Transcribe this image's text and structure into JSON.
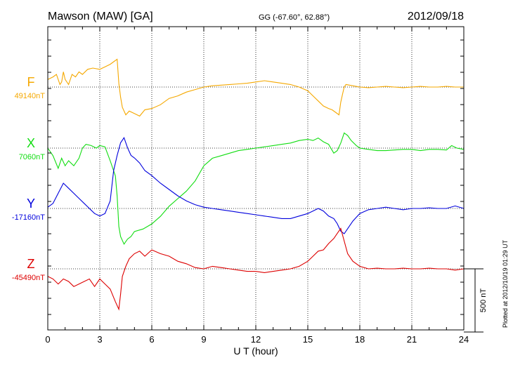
{
  "header": {
    "station": "Mawson (MAW)  [GA]",
    "coords": "GG (-67.60°,  62.88°)",
    "date": "2012/09/18"
  },
  "footer_note": "Plotted at 2012/10/19 01:29 UT",
  "chart_data": {
    "type": "line",
    "xlabel": "U T (hour)",
    "xlim": [
      0,
      24
    ],
    "x_ticks": [
      "0",
      "3",
      "6",
      "9",
      "12",
      "15",
      "18",
      "21",
      "24"
    ],
    "scale_bar": {
      "label": "500 nT",
      "value": 500
    },
    "series": [
      {
        "name": "F",
        "baseline_label": "49140nT",
        "color": "#f5a800",
        "x": [
          0,
          0.3,
          0.5,
          0.7,
          0.8,
          0.9,
          1.0,
          1.2,
          1.4,
          1.6,
          1.8,
          2.0,
          2.3,
          2.6,
          3.0,
          3.3,
          3.6,
          3.8,
          4.0,
          4.1,
          4.2,
          4.3,
          4.5,
          4.7,
          5.0,
          5.3,
          5.6,
          6.0,
          6.5,
          7.0,
          7.5,
          8.0,
          8.5,
          9.0,
          9.5,
          10.0,
          10.5,
          11.0,
          11.5,
          12.0,
          12.5,
          13.0,
          13.5,
          14.0,
          14.5,
          15.0,
          15.3,
          15.6,
          15.9,
          16.2,
          16.4,
          16.6,
          16.8,
          16.9,
          17.0,
          17.1,
          17.2,
          17.4,
          17.6,
          18.0,
          18.5,
          19.0,
          19.5,
          20.0,
          20.5,
          21.0,
          21.5,
          22.0,
          22.5,
          23.0,
          23.5,
          24.0
        ],
        "values": [
          60,
          80,
          100,
          20,
          40,
          120,
          60,
          20,
          100,
          80,
          120,
          100,
          140,
          150,
          140,
          160,
          180,
          200,
          220,
          30,
          -80,
          -160,
          -220,
          -190,
          -210,
          -230,
          -180,
          -170,
          -140,
          -90,
          -70,
          -40,
          -20,
          0,
          10,
          15,
          20,
          25,
          30,
          40,
          50,
          40,
          30,
          20,
          0,
          -30,
          -70,
          -110,
          -150,
          -170,
          -180,
          -200,
          -220,
          -120,
          -60,
          0,
          20,
          15,
          10,
          0,
          -5,
          0,
          5,
          0,
          -5,
          0,
          5,
          0,
          0,
          5,
          0,
          0
        ]
      },
      {
        "name": "X",
        "baseline_label": "7060nT",
        "color": "#11dd11",
        "x": [
          0,
          0.3,
          0.6,
          0.8,
          1.0,
          1.2,
          1.5,
          1.8,
          2.0,
          2.2,
          2.5,
          2.8,
          3.0,
          3.3,
          3.6,
          3.9,
          4.0,
          4.1,
          4.2,
          4.4,
          4.6,
          4.8,
          5.0,
          5.5,
          6.0,
          6.5,
          7.0,
          7.5,
          8.0,
          8.5,
          9.0,
          9.5,
          10.0,
          10.5,
          11.0,
          11.5,
          12.0,
          12.5,
          13.0,
          13.5,
          14.0,
          14.5,
          15.0,
          15.3,
          15.6,
          15.9,
          16.2,
          16.5,
          16.7,
          16.9,
          17.1,
          17.3,
          17.5,
          17.8,
          18.0,
          18.5,
          19.0,
          19.5,
          20.0,
          20.5,
          21.0,
          21.5,
          22.0,
          22.5,
          23.0,
          23.3,
          23.6,
          24.0
        ],
        "values": [
          0,
          -60,
          -160,
          -80,
          -140,
          -100,
          -140,
          -80,
          0,
          30,
          20,
          0,
          20,
          10,
          -100,
          -220,
          -380,
          -620,
          -700,
          -760,
          -720,
          -700,
          -660,
          -640,
          -600,
          -540,
          -460,
          -400,
          -340,
          -260,
          -140,
          -80,
          -60,
          -40,
          -20,
          -10,
          0,
          10,
          20,
          30,
          40,
          60,
          70,
          60,
          80,
          50,
          30,
          -40,
          -20,
          40,
          120,
          100,
          60,
          20,
          0,
          -10,
          -20,
          -20,
          -15,
          -10,
          -10,
          -20,
          -10,
          -10,
          -15,
          20,
          0,
          -10
        ]
      },
      {
        "name": "Y",
        "baseline_label": "-17160nT",
        "color": "#0000dd",
        "x": [
          0,
          0.3,
          0.6,
          0.9,
          1.2,
          1.5,
          1.8,
          2.1,
          2.4,
          2.7,
          3.0,
          3.3,
          3.6,
          3.8,
          4.0,
          4.2,
          4.4,
          4.6,
          4.8,
          5.0,
          5.3,
          5.6,
          6.0,
          6.5,
          7.0,
          7.5,
          8.0,
          8.5,
          9.0,
          9.5,
          10.0,
          10.5,
          11.0,
          11.5,
          12.0,
          12.5,
          13.0,
          13.5,
          14.0,
          14.5,
          15.0,
          15.3,
          15.6,
          15.9,
          16.2,
          16.5,
          16.7,
          16.9,
          17.1,
          17.3,
          17.6,
          18.0,
          18.5,
          19.0,
          19.5,
          20.0,
          20.5,
          21.0,
          21.5,
          22.0,
          22.5,
          23.0,
          23.5,
          24.0
        ],
        "values": [
          10,
          40,
          120,
          200,
          160,
          120,
          80,
          40,
          0,
          -40,
          -60,
          -40,
          60,
          300,
          420,
          520,
          560,
          480,
          420,
          400,
          360,
          300,
          260,
          200,
          150,
          100,
          60,
          30,
          10,
          0,
          -10,
          -20,
          -30,
          -40,
          -50,
          -60,
          -70,
          -80,
          -80,
          -60,
          -40,
          -20,
          0,
          -20,
          -60,
          -80,
          -120,
          -180,
          -200,
          -160,
          -100,
          -40,
          -10,
          0,
          10,
          0,
          -10,
          0,
          0,
          5,
          0,
          0,
          20,
          0
        ]
      },
      {
        "name": "Z",
        "baseline_label": "-45490nT",
        "color": "#dd0000",
        "x": [
          0,
          0.3,
          0.6,
          0.9,
          1.2,
          1.5,
          1.8,
          2.1,
          2.4,
          2.7,
          3.0,
          3.3,
          3.6,
          3.9,
          4.1,
          4.2,
          4.3,
          4.5,
          4.7,
          5.0,
          5.3,
          5.6,
          6.0,
          6.5,
          7.0,
          7.5,
          8.0,
          8.5,
          9.0,
          9.5,
          10.0,
          10.5,
          11.0,
          11.5,
          12.0,
          12.5,
          13.0,
          13.5,
          14.0,
          14.5,
          15.0,
          15.3,
          15.6,
          15.9,
          16.2,
          16.5,
          16.7,
          16.9,
          17.1,
          17.3,
          17.6,
          18.0,
          18.5,
          19.0,
          19.5,
          20.0,
          20.5,
          21.0,
          21.5,
          22.0,
          22.5,
          23.0,
          23.5,
          24.0
        ],
        "values": [
          -60,
          -80,
          -120,
          -80,
          -100,
          -140,
          -120,
          -100,
          -80,
          -140,
          -80,
          -120,
          -160,
          -260,
          -320,
          -200,
          -60,
          20,
          80,
          120,
          140,
          100,
          150,
          120,
          100,
          60,
          40,
          10,
          0,
          20,
          10,
          0,
          -10,
          -20,
          -20,
          -30,
          -20,
          -10,
          0,
          20,
          60,
          100,
          140,
          150,
          200,
          240,
          280,
          320,
          220,
          120,
          60,
          20,
          0,
          5,
          0,
          0,
          5,
          0,
          0,
          5,
          0,
          0,
          -10,
          0
        ]
      }
    ]
  }
}
